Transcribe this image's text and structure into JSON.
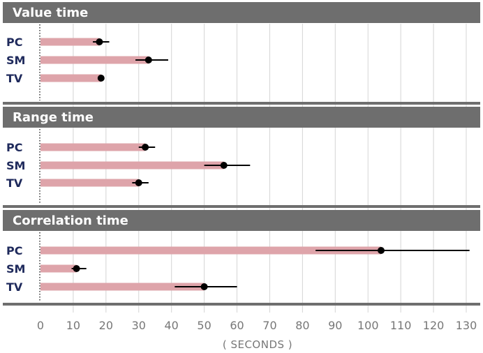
{
  "chart_data": {
    "type": "bar",
    "xlabel": "( SECONDS )",
    "xlim": [
      0,
      130
    ],
    "x_ticks": [
      0,
      10,
      20,
      30,
      40,
      50,
      60,
      70,
      80,
      90,
      100,
      110,
      120,
      130
    ],
    "grid": true,
    "categories": [
      "PC",
      "SM",
      "TV"
    ],
    "colors": {
      "bar": "#dea4aa",
      "header": "#6e6e6e",
      "point": "#000000",
      "whisker": "#000000",
      "grid": "#d4d4d4",
      "label": "#1f2a5c"
    },
    "panels": [
      {
        "title": "Value  time",
        "bars": [
          {
            "category": "PC",
            "value": 18,
            "err_low": 16,
            "err_high": 21
          },
          {
            "category": "SM",
            "value": 33,
            "err_low": 29,
            "err_high": 39
          },
          {
            "category": "TV",
            "value": 18.5,
            "err_low": 18.5,
            "err_high": 18.5
          }
        ]
      },
      {
        "title": "Range time",
        "bars": [
          {
            "category": "PC",
            "value": 32,
            "err_low": 30,
            "err_high": 35
          },
          {
            "category": "SM",
            "value": 56,
            "err_low": 50,
            "err_high": 64
          },
          {
            "category": "TV",
            "value": 30,
            "err_low": 28,
            "err_high": 33
          }
        ]
      },
      {
        "title": "Correlation time",
        "bars": [
          {
            "category": "PC",
            "value": 104,
            "err_low": 84,
            "err_high": 131
          },
          {
            "category": "SM",
            "value": 11,
            "err_low": 9.5,
            "err_high": 14
          },
          {
            "category": "TV",
            "value": 50,
            "err_low": 41,
            "err_high": 60
          }
        ]
      }
    ]
  }
}
